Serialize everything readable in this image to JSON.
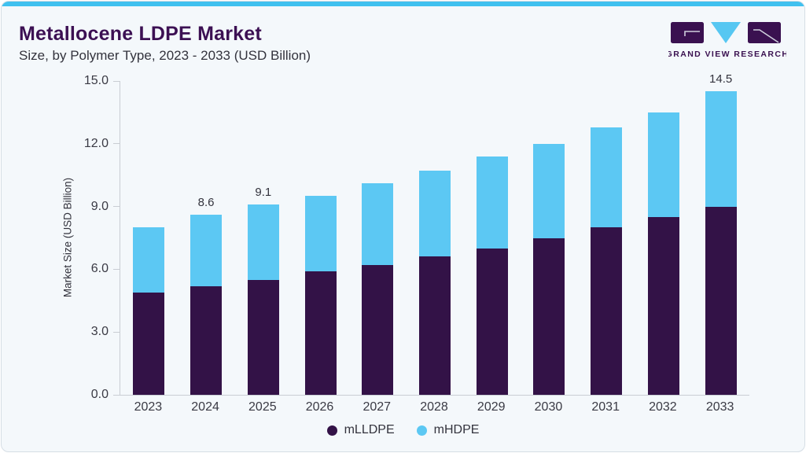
{
  "page": {
    "title": "Metallocene LDPE Market",
    "subtitle": "Size, by Polymer Type, 2023 - 2033 (USD Billion)"
  },
  "logo": {
    "wordmark": "GRAND VIEW RESEARCH"
  },
  "colors": {
    "top_stripe": "#40c1ef",
    "title_purple": "#3c1053",
    "text_dark": "#33333d",
    "axis_text": "#3a3a44",
    "axis_line": "#c9cdd3",
    "card_background": "#f4f8fb",
    "mlldpe_purple": "#331247",
    "mhdpe_blue": "#5cc8f3"
  },
  "chart_data": {
    "type": "bar",
    "stacked": true,
    "title": "Metallocene LDPE Market Size, by Polymer Type, 2023 - 2033 (USD Billion)",
    "categories": [
      "2023",
      "2024",
      "2025",
      "2026",
      "2027",
      "2028",
      "2029",
      "2030",
      "2031",
      "2032",
      "2033"
    ],
    "series": [
      {
        "name": "mLLDPE",
        "color": "#331247",
        "values": [
          4.9,
          5.2,
          5.5,
          5.9,
          6.2,
          6.6,
          7.0,
          7.5,
          8.0,
          8.5,
          9.0
        ]
      },
      {
        "name": "mHDPE",
        "color": "#5cc8f3",
        "values": [
          3.1,
          3.4,
          3.6,
          3.6,
          3.9,
          4.1,
          4.4,
          4.5,
          4.8,
          5.0,
          5.5
        ]
      }
    ],
    "totals": [
      8.0,
      8.6,
      9.1,
      9.5,
      10.1,
      10.7,
      11.4,
      12.0,
      12.8,
      13.5,
      14.5
    ],
    "bar_labels": [
      "",
      "8.6",
      "9.1",
      "",
      "",
      "",
      "",
      "",
      "",
      "",
      "14.5"
    ],
    "xlabel": "",
    "ylabel": "Market Size (USD Billion)",
    "ylim": [
      0,
      15
    ],
    "yticks": [
      "0.0",
      "3.0",
      "6.0",
      "9.0",
      "12.0",
      "15.0"
    ],
    "grid": false,
    "legend_position": "bottom"
  }
}
